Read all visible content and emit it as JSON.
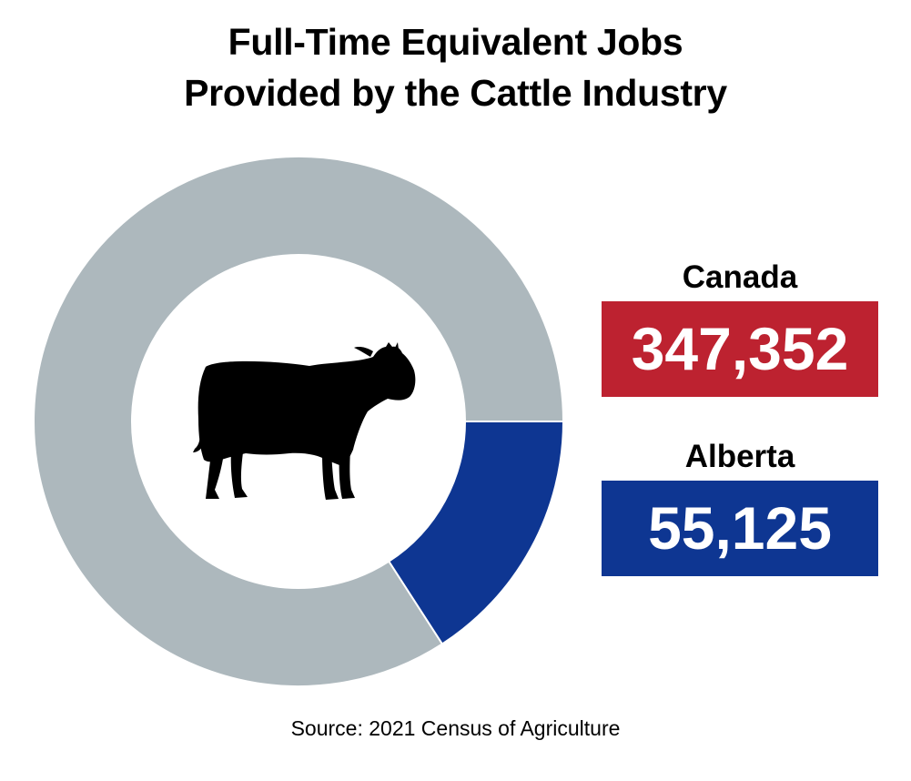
{
  "title": {
    "line1": "Full-Time Equivalent Jobs",
    "line2": "Provided by the Cattle Industry"
  },
  "chart_data": {
    "type": "pie",
    "variant": "donut",
    "slices": [
      {
        "label": "Canada",
        "value": 347352,
        "color": "#adb8bd"
      },
      {
        "label": "Alberta",
        "value": 55125,
        "color": "#0e3692"
      }
    ],
    "alberta_share_of_canada": 0.1587,
    "center_icon": "cow-icon"
  },
  "callouts": [
    {
      "label": "Canada",
      "value": "347,352",
      "color": "#bd2230"
    },
    {
      "label": "Alberta",
      "value": "55,125",
      "color": "#0e3692"
    }
  ],
  "source": "Source: 2021 Census of Agriculture"
}
